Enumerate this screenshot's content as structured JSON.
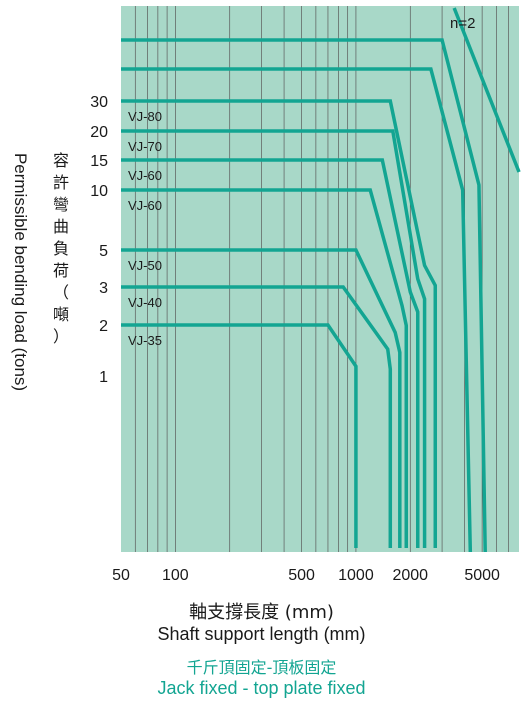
{
  "chart_data": {
    "type": "line",
    "title": "",
    "xlabel_cjk": "軸支撐長度 (mm)",
    "xlabel": "Shaft support length (mm)",
    "ylabel_cjk": [
      "容",
      "許",
      "彎",
      "曲",
      "負",
      "荷",
      "（",
      "噸",
      "）"
    ],
    "ylabel": "Permissible bending load (tons)",
    "x_scale": "log",
    "xlim": [
      50,
      8000
    ],
    "x_ticks": [
      {
        "value": 50,
        "label": "50"
      },
      {
        "value": 100,
        "label": "100"
      },
      {
        "value": 500,
        "label": "500"
      },
      {
        "value": 1000,
        "label": "1000"
      },
      {
        "value": 2000,
        "label": "2000"
      },
      {
        "value": 5000,
        "label": "5000"
      }
    ],
    "y_ticks": [
      {
        "label": "30"
      },
      {
        "label": "20"
      },
      {
        "label": "15"
      },
      {
        "label": "10"
      },
      {
        "label": "5"
      },
      {
        "label": "3"
      },
      {
        "label": "2"
      },
      {
        "label": "1"
      }
    ],
    "grid": true,
    "annotation": "n=2",
    "series": [
      {
        "name": "VJ-80",
        "load": 30,
        "knee1": 1550,
        "knee2": 2400,
        "end": 2750
      },
      {
        "name": "VJ-70",
        "load": 20,
        "knee1": 1600,
        "knee2": 2200,
        "end": 2400
      },
      {
        "name": "VJ-60",
        "load": 15,
        "knee1": 1400,
        "knee2": 2000,
        "end": 2200
      },
      {
        "name": "VJ-60",
        "load": 10,
        "knee1": 1200,
        "knee2": 1800,
        "end": 1900
      },
      {
        "name": "VJ-50",
        "load": 5,
        "knee1": 1000,
        "knee2": 1650,
        "end": 1750
      },
      {
        "name": "VJ-40",
        "load": 3,
        "knee1": 850,
        "knee2": 1500,
        "end": 1550
      },
      {
        "name": "VJ-35",
        "load": 2,
        "knee1": 700,
        "knee2": 1000,
        "end": 1000
      }
    ]
  },
  "caption": {
    "cjk": "千斤頂固定-頂板固定",
    "en": "Jack fixed - top plate fixed"
  },
  "colors": {
    "plot_bg": "#a8d8c8",
    "line": "#13a592",
    "grid": "#5a5a5a",
    "caption": "#13a592"
  }
}
